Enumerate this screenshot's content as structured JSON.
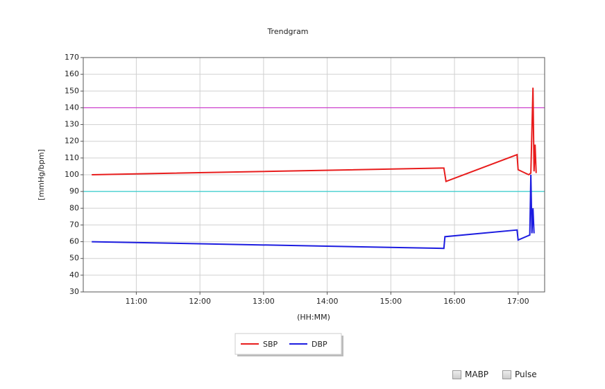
{
  "chart_data": {
    "type": "line",
    "title": "Trendgram",
    "y_label": "[mmHg/bpm]",
    "x_label": "(HH:MM)",
    "xlim": [
      "10:10",
      "17:25"
    ],
    "xticks": [
      "11:00",
      "12:00",
      "13:00",
      "14:00",
      "15:00",
      "16:00",
      "17:00"
    ],
    "ylim": [
      30,
      170
    ],
    "yticks": [
      30,
      40,
      50,
      60,
      70,
      80,
      90,
      100,
      110,
      120,
      130,
      140,
      150,
      160,
      170
    ],
    "grid": true,
    "reference_lines": [
      {
        "value": 140,
        "color": "#cc33cc"
      },
      {
        "value": 90,
        "color": "#33cccc"
      }
    ],
    "series": [
      {
        "name": "SBP",
        "color": "#e81c1c",
        "x": [
          "10:18",
          "15:50",
          "15:52",
          "16:59",
          "17:00",
          "17:10",
          "17:12",
          "17:14",
          "17:15",
          "17:16",
          "17:17"
        ],
        "values": [
          100,
          104,
          96,
          112,
          103,
          100,
          101,
          152,
          102,
          118,
          101
        ]
      },
      {
        "name": "DBP",
        "color": "#1c1ce0",
        "x": [
          "10:18",
          "15:50",
          "15:51",
          "16:59",
          "17:00",
          "17:11",
          "17:12",
          "17:13",
          "17:14",
          "17:15"
        ],
        "values": [
          60,
          56,
          63,
          67,
          61,
          64,
          100,
          65,
          80,
          65
        ]
      }
    ]
  },
  "controls": {
    "checkboxes": [
      {
        "label": "MABP",
        "checked": false
      },
      {
        "label": "Pulse",
        "checked": false
      }
    ]
  }
}
